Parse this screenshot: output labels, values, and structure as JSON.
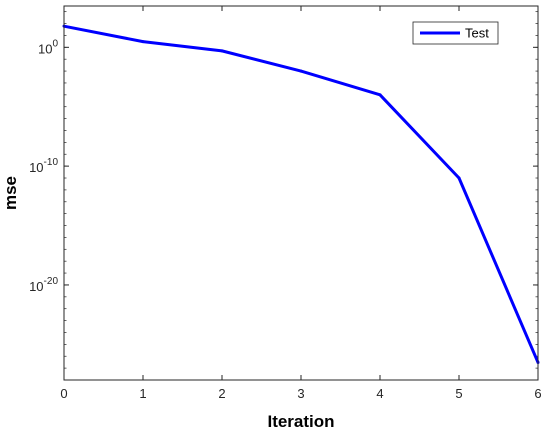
{
  "chart_data": {
    "type": "line",
    "xlabel": "Iteration",
    "ylabel": "mse",
    "x": [
      0,
      1,
      2,
      3,
      4,
      5,
      6
    ],
    "series": [
      {
        "name": "Test",
        "color": "#0000FF",
        "values": [
          60,
          3,
          0.5,
          0.01,
          0.0001,
          1e-11,
          3e-27
        ]
      }
    ],
    "xlim": [
      0,
      6
    ],
    "ylim": [
      1e-28,
      3000
    ],
    "yscale": "log",
    "x_ticks": [
      "0",
      "1",
      "2",
      "3",
      "4",
      "5",
      "6"
    ],
    "y_ticks": [
      {
        "value": 1,
        "base": "10",
        "exponent": "0"
      },
      {
        "value": 1e-10,
        "base": "10",
        "exponent": "-10"
      },
      {
        "value": 1e-20,
        "base": "10",
        "exponent": "-20"
      }
    ],
    "grid": false,
    "legend_position": "top-right"
  }
}
